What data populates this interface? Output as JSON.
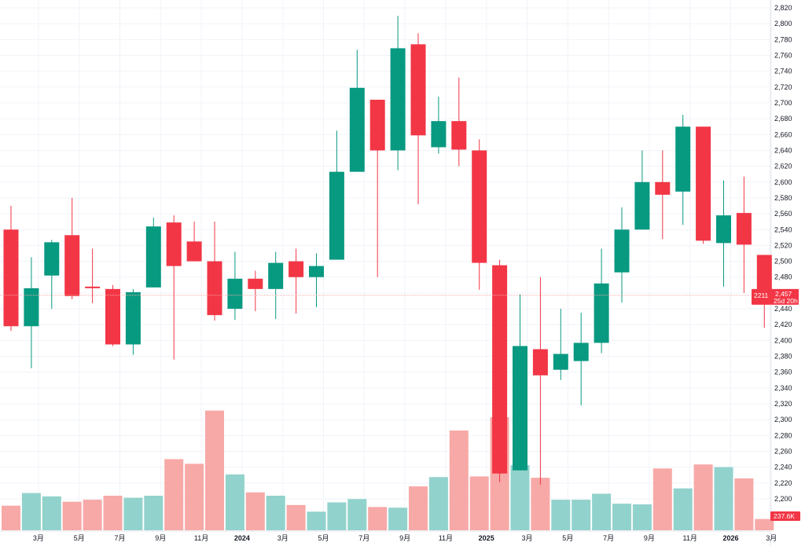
{
  "chart_data": {
    "type": "candlestick",
    "interval": "monthly",
    "colors": {
      "up": "#089981",
      "down": "#f23645",
      "volume_up": "#92d2cc",
      "volume_down": "#f7a9a7",
      "grid": "#f0f3fa",
      "price_line": "#f7a9a7"
    },
    "y_axis": {
      "min": 2200,
      "max": 2820,
      "step": 20,
      "tick_labels": [
        "2,200",
        "2,220",
        "2,240",
        "2,260",
        "2,280",
        "2,300",
        "2,320",
        "2,340",
        "2,360",
        "2,380",
        "2,400",
        "2,420",
        "2,440",
        "2,460",
        "2,480",
        "2,500",
        "2,520",
        "2,540",
        "2,560",
        "2,580",
        "2,600",
        "2,620",
        "2,640",
        "2,660",
        "2,680",
        "2,700",
        "2,720",
        "2,740",
        "2,760",
        "2,780",
        "2,800",
        "2,820"
      ]
    },
    "x_labels": [
      {
        "text": "3月",
        "index": 1,
        "bold": false
      },
      {
        "text": "5月",
        "index": 3,
        "bold": false
      },
      {
        "text": "7月",
        "index": 5,
        "bold": false
      },
      {
        "text": "9月",
        "index": 7,
        "bold": false
      },
      {
        "text": "11月",
        "index": 9,
        "bold": false
      },
      {
        "text": "2024",
        "index": 11,
        "bold": true
      },
      {
        "text": "3月",
        "index": 13,
        "bold": false
      },
      {
        "text": "5月",
        "index": 15,
        "bold": false
      },
      {
        "text": "7月",
        "index": 17,
        "bold": false
      },
      {
        "text": "9月",
        "index": 19,
        "bold": false
      },
      {
        "text": "11月",
        "index": 21,
        "bold": false
      },
      {
        "text": "2025",
        "index": 23,
        "bold": true
      },
      {
        "text": "3月",
        "index": 25,
        "bold": false
      },
      {
        "text": "5月",
        "index": 27,
        "bold": false
      },
      {
        "text": "7月",
        "index": 29,
        "bold": false
      },
      {
        "text": "9月",
        "index": 31,
        "bold": false
      },
      {
        "text": "11月",
        "index": 33,
        "bold": false
      },
      {
        "text": "2026",
        "index": 35,
        "bold": true
      },
      {
        "text": "3月",
        "index": 37,
        "bold": false
      }
    ],
    "candles": [
      {
        "o": 2540,
        "h": 2570,
        "l": 2412,
        "c": 2418,
        "v": 37
      },
      {
        "o": 2418,
        "h": 2505,
        "l": 2365,
        "c": 2466,
        "v": 56
      },
      {
        "o": 2482,
        "h": 2527,
        "l": 2440,
        "c": 2524,
        "v": 51
      },
      {
        "o": 2533,
        "h": 2580,
        "l": 2452,
        "c": 2456,
        "v": 43
      },
      {
        "o": 2468,
        "h": 2516,
        "l": 2447,
        "c": 2466,
        "v": 46
      },
      {
        "o": 2465,
        "h": 2470,
        "l": 2393,
        "c": 2395,
        "v": 52
      },
      {
        "o": 2395,
        "h": 2465,
        "l": 2382,
        "c": 2461,
        "v": 49
      },
      {
        "o": 2467,
        "h": 2555,
        "l": 2467,
        "c": 2544,
        "v": 52
      },
      {
        "o": 2549,
        "h": 2558,
        "l": 2376,
        "c": 2494,
        "v": 107
      },
      {
        "o": 2525,
        "h": 2550,
        "l": 2500,
        "c": 2500,
        "v": 100
      },
      {
        "o": 2500,
        "h": 2550,
        "l": 2425,
        "c": 2432,
        "v": 180
      },
      {
        "o": 2440,
        "h": 2512,
        "l": 2426,
        "c": 2478,
        "v": 84
      },
      {
        "o": 2478,
        "h": 2488,
        "l": 2437,
        "c": 2465,
        "v": 57
      },
      {
        "o": 2465,
        "h": 2512,
        "l": 2427,
        "c": 2498,
        "v": 52
      },
      {
        "o": 2500,
        "h": 2516,
        "l": 2434,
        "c": 2480,
        "v": 38
      },
      {
        "o": 2480,
        "h": 2510,
        "l": 2442,
        "c": 2494,
        "v": 28
      },
      {
        "o": 2502,
        "h": 2665,
        "l": 2502,
        "c": 2613,
        "v": 42
      },
      {
        "o": 2613,
        "h": 2767,
        "l": 2613,
        "c": 2719,
        "v": 47
      },
      {
        "o": 2704,
        "h": 2704,
        "l": 2480,
        "c": 2640,
        "v": 35
      },
      {
        "o": 2640,
        "h": 2810,
        "l": 2615,
        "c": 2769,
        "v": 34
      },
      {
        "o": 2774,
        "h": 2788,
        "l": 2572,
        "c": 2659,
        "v": 66
      },
      {
        "o": 2644,
        "h": 2708,
        "l": 2636,
        "c": 2677,
        "v": 80
      },
      {
        "o": 2677,
        "h": 2732,
        "l": 2620,
        "c": 2641,
        "v": 150
      },
      {
        "o": 2640,
        "h": 2654,
        "l": 2464,
        "c": 2498,
        "v": 81
      },
      {
        "o": 2495,
        "h": 2502,
        "l": 2221,
        "c": 2232,
        "v": 170
      },
      {
        "o": 2236,
        "h": 2458,
        "l": 2236,
        "c": 2393,
        "v": 98
      },
      {
        "o": 2389,
        "h": 2480,
        "l": 2218,
        "c": 2356,
        "v": 79
      },
      {
        "o": 2363,
        "h": 2440,
        "l": 2350,
        "c": 2383,
        "v": 46
      },
      {
        "o": 2374,
        "h": 2435,
        "l": 2318,
        "c": 2397,
        "v": 46
      },
      {
        "o": 2397,
        "h": 2516,
        "l": 2384,
        "c": 2472,
        "v": 55
      },
      {
        "o": 2486,
        "h": 2568,
        "l": 2448,
        "c": 2540,
        "v": 40
      },
      {
        "o": 2540,
        "h": 2640,
        "l": 2540,
        "c": 2600,
        "v": 39
      },
      {
        "o": 2600,
        "h": 2640,
        "l": 2528,
        "c": 2584,
        "v": 93
      },
      {
        "o": 2588,
        "h": 2685,
        "l": 2546,
        "c": 2670,
        "v": 63
      },
      {
        "o": 2670,
        "h": 2670,
        "l": 2522,
        "c": 2526,
        "v": 99
      },
      {
        "o": 2523,
        "h": 2602,
        "l": 2468,
        "c": 2558,
        "v": 95
      },
      {
        "o": 2561,
        "h": 2607,
        "l": 2460,
        "c": 2521,
        "v": 78
      },
      {
        "o": 2508,
        "h": 2508,
        "l": 2416,
        "c": 2457,
        "v": 17
      }
    ],
    "volume_max": 215,
    "last_price": {
      "value": 2457,
      "label": "2,457",
      "countdown": "25d 20h",
      "tag": "2211"
    },
    "last_volume": {
      "label": "237.6K"
    }
  }
}
